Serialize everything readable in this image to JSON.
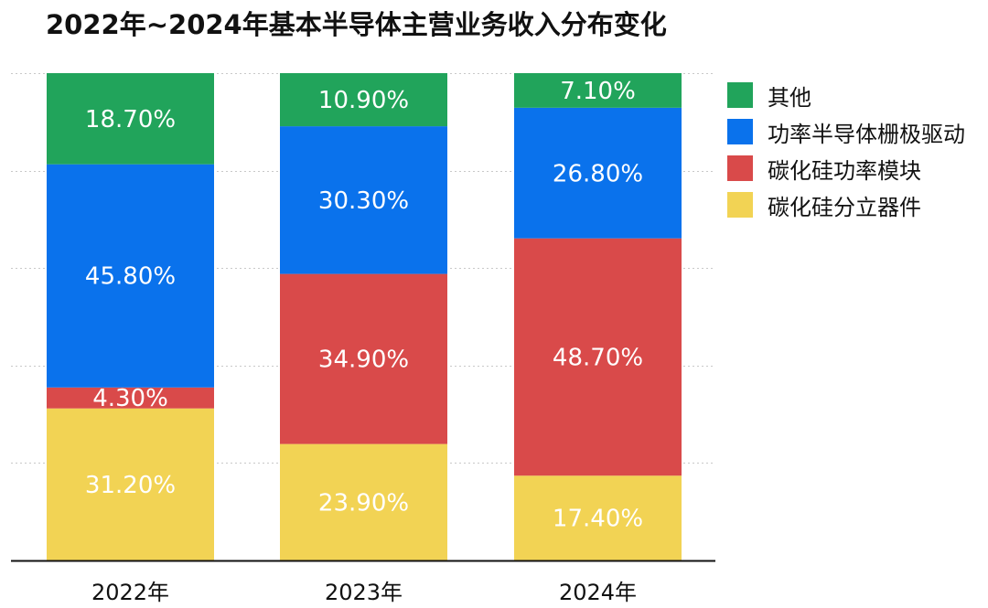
{
  "chart_data": {
    "type": "bar",
    "stacked": true,
    "title": "2022年~2024年基本半导体主营业务收入分布变化",
    "categories": [
      "2022年",
      "2023年",
      "2024年"
    ],
    "ylim": [
      0,
      100
    ],
    "grid": true,
    "legend_position": "right",
    "series": [
      {
        "name": "碳化硅分立器件",
        "color": "#f2d354",
        "values": [
          31.2,
          23.9,
          17.4
        ],
        "labels": [
          "31.20%",
          "23.90%",
          "17.40%"
        ]
      },
      {
        "name": "碳化硅功率模块",
        "color": "#d94a4a",
        "values": [
          4.3,
          34.9,
          48.7
        ],
        "labels": [
          "4.30%",
          "34.90%",
          "48.70%"
        ]
      },
      {
        "name": "功率半导体栅极驱动",
        "color": "#0a72ec",
        "values": [
          45.8,
          30.3,
          26.8
        ],
        "labels": [
          "45.80%",
          "30.30%",
          "26.80%"
        ]
      },
      {
        "name": "其他",
        "color": "#21a45b",
        "values": [
          18.7,
          10.9,
          7.1
        ],
        "labels": [
          "18.70%",
          "10.90%",
          "7.10%"
        ]
      }
    ],
    "legend_order": [
      "其他",
      "功率半导体栅极驱动",
      "碳化硅功率模块",
      "碳化硅分立器件"
    ]
  }
}
